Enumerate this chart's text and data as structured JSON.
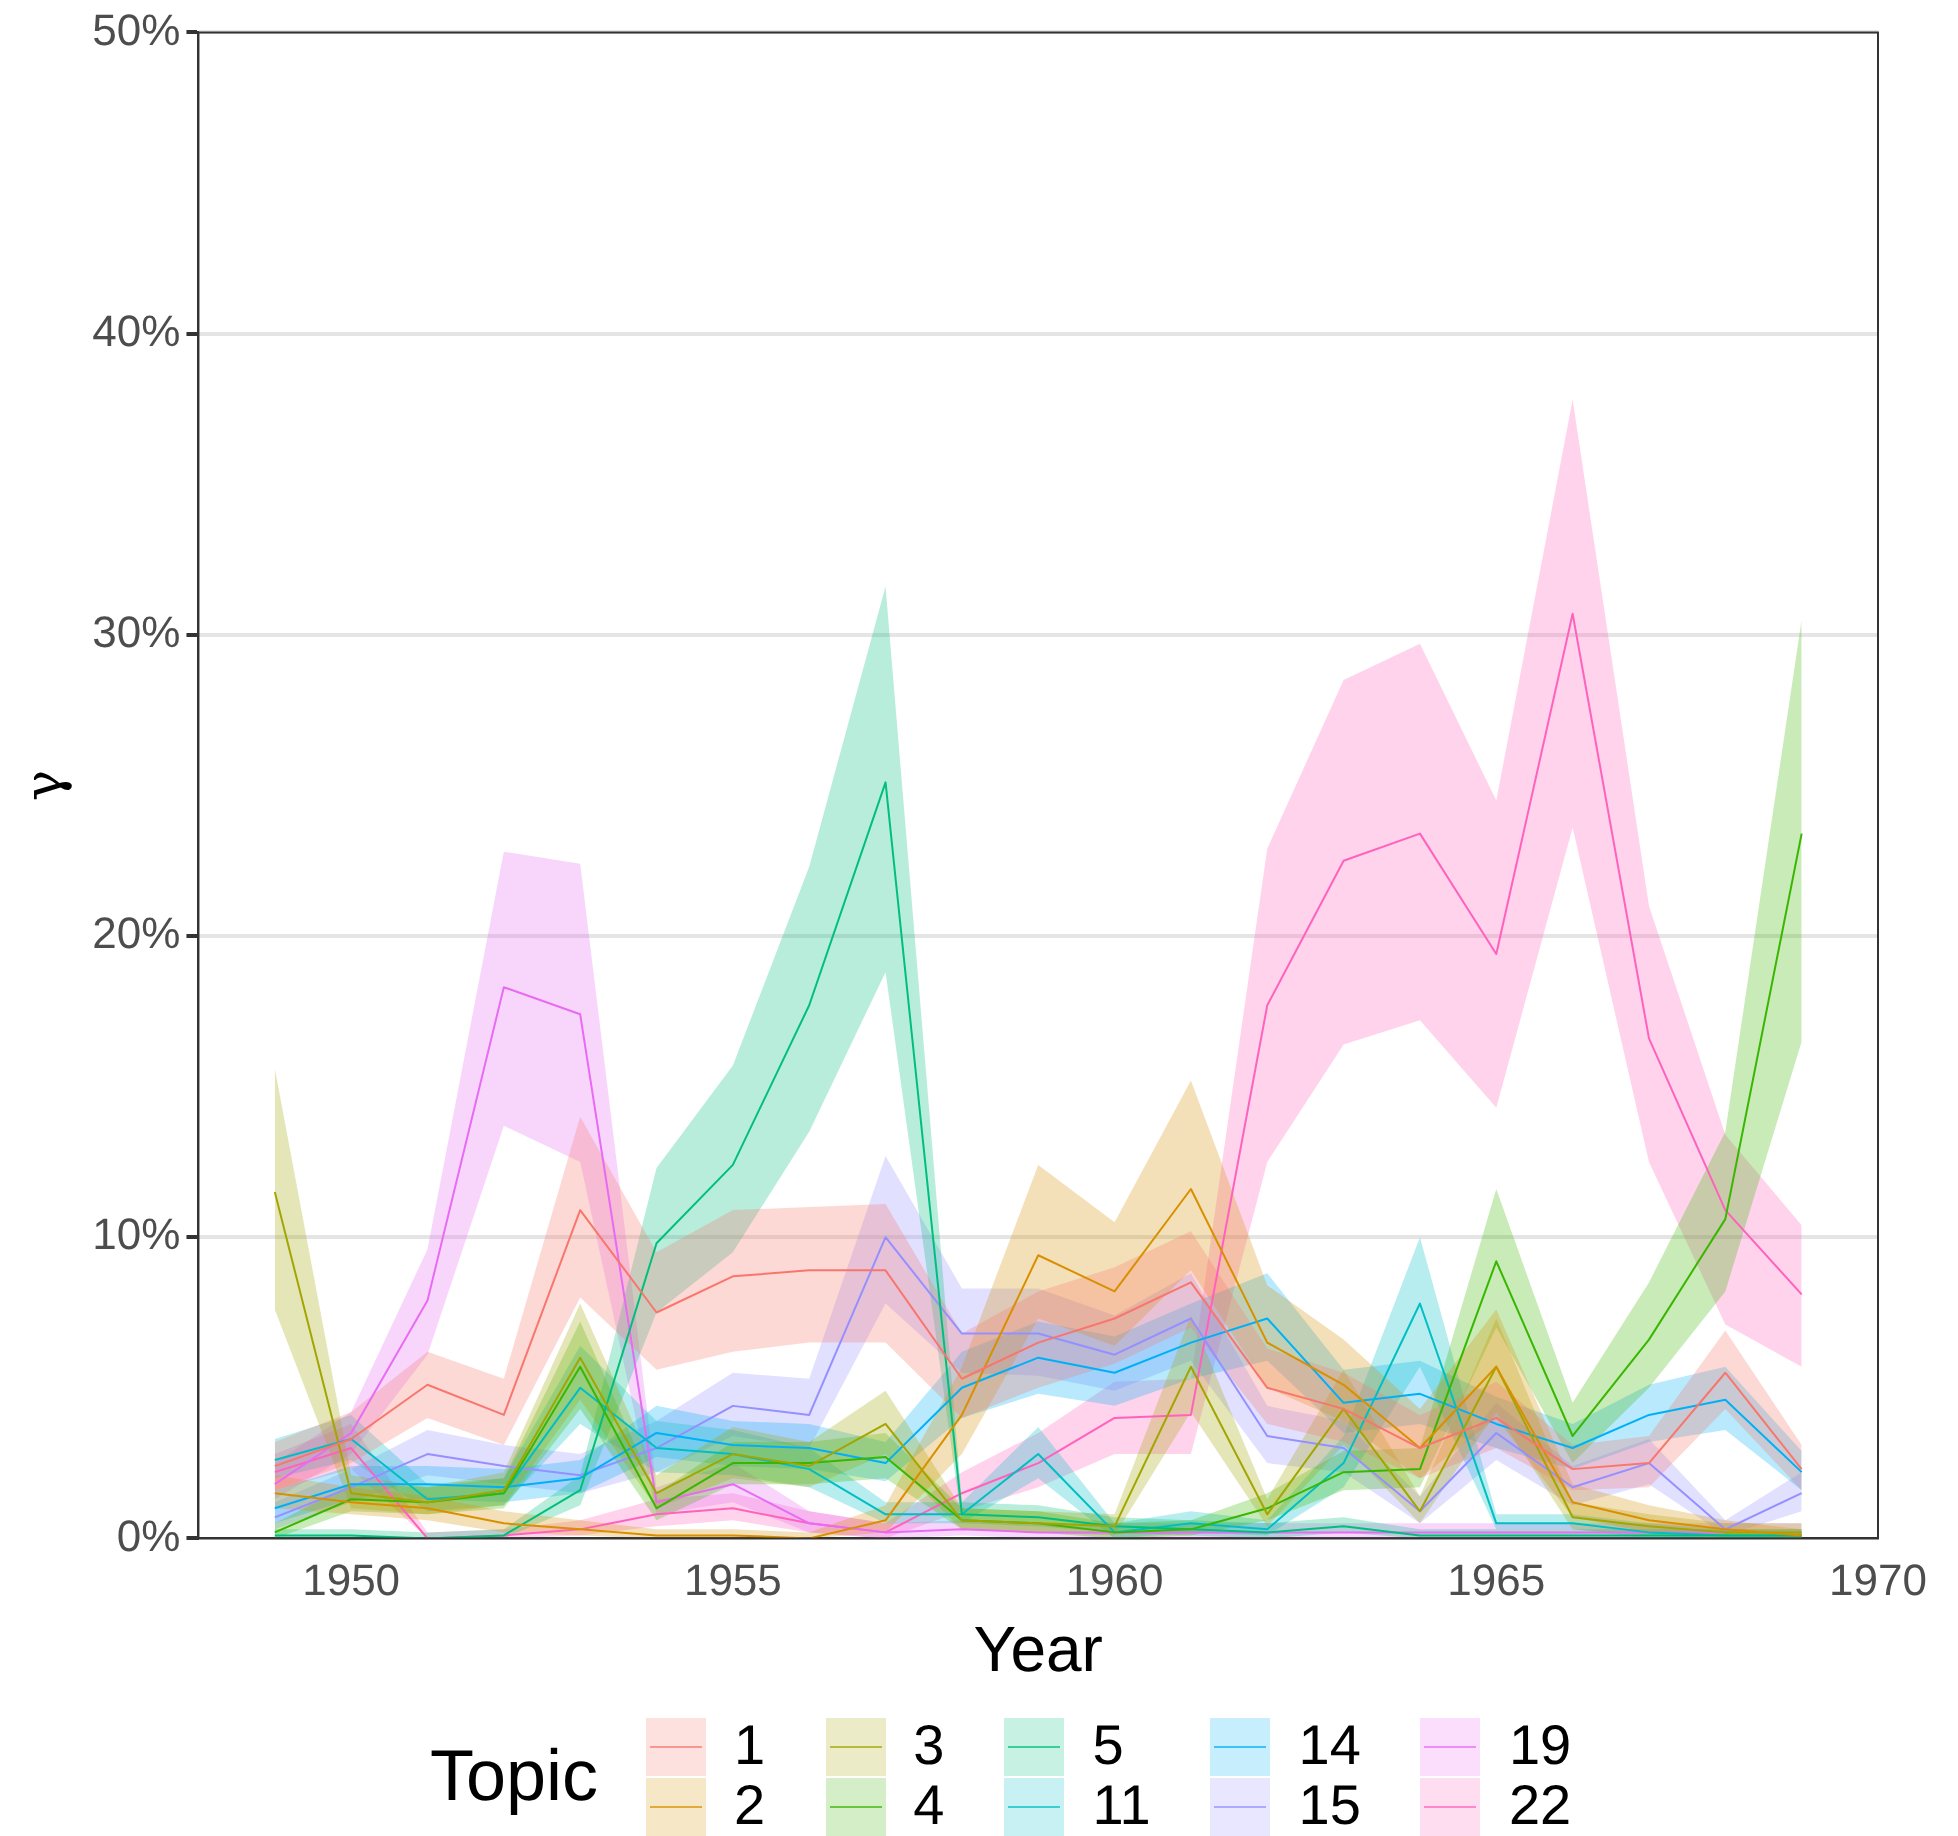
{
  "chart_data": {
    "type": "line",
    "xlabel": "Year",
    "ylabel": "γ",
    "legend_title": "Topic",
    "legend": "bottom",
    "grid": "y",
    "marker": "none",
    "line_style": "solid",
    "x": [
      1949,
      1950,
      1951,
      1952,
      1953,
      1954,
      1955,
      1956,
      1957,
      1958,
      1959,
      1960,
      1961,
      1962,
      1963,
      1964,
      1965,
      1966,
      1967,
      1968,
      1969
    ],
    "xlim": [
      1948,
      1970
    ],
    "xticks": [
      1950,
      1955,
      1960,
      1965,
      1970
    ],
    "ylim": [
      0,
      50
    ],
    "yticks": [
      {
        "value": 0,
        "label": "0%"
      },
      {
        "value": 10,
        "label": "10%"
      },
      {
        "value": 20,
        "label": "20%"
      },
      {
        "value": 30,
        "label": "30%"
      },
      {
        "value": 40,
        "label": "40%"
      },
      {
        "value": 50,
        "label": "50%"
      }
    ],
    "series": [
      {
        "name": "1",
        "color": "#f8766d",
        "values": [
          2.4,
          3.3,
          5.1,
          4.1,
          10.9,
          7.5,
          8.7,
          8.9,
          8.9,
          5.3,
          6.5,
          7.3,
          8.5,
          5.0,
          4.3,
          3.0,
          4.0,
          2.3,
          2.5,
          5.5,
          2.3
        ],
        "lower": [
          1.6,
          2.5,
          4.0,
          3.1,
          8.0,
          5.6,
          6.2,
          6.5,
          6.5,
          4.0,
          5.0,
          5.8,
          7.0,
          3.8,
          3.2,
          2.0,
          3.0,
          1.6,
          1.7,
          4.3,
          1.6
        ],
        "upper": [
          3.2,
          4.2,
          6.2,
          5.3,
          14.0,
          9.5,
          10.9,
          11.0,
          11.1,
          6.8,
          8.2,
          9.0,
          10.2,
          6.3,
          5.5,
          4.1,
          5.2,
          3.1,
          3.4,
          6.9,
          3.1
        ]
      },
      {
        "name": "2",
        "color": "#d89000",
        "values": [
          1.5,
          1.2,
          1.0,
          0.5,
          0.3,
          0.1,
          0.1,
          0.0,
          0.6,
          4.1,
          9.4,
          8.2,
          11.6,
          6.5,
          5.1,
          3.0,
          5.7,
          1.2,
          0.6,
          0.3,
          0.1
        ],
        "lower": [
          1.0,
          0.8,
          0.6,
          0.2,
          0.1,
          0.0,
          0.0,
          0.0,
          0.2,
          2.8,
          7.3,
          6.4,
          8.9,
          5.0,
          3.9,
          2.0,
          4.0,
          0.7,
          0.2,
          0.1,
          0.0
        ],
        "upper": [
          2.1,
          1.7,
          1.4,
          0.9,
          0.6,
          0.3,
          0.3,
          0.2,
          1.1,
          5.7,
          12.4,
          10.5,
          15.2,
          8.4,
          6.6,
          4.3,
          7.6,
          1.8,
          1.1,
          0.6,
          0.3
        ]
      },
      {
        "name": "3",
        "color": "#a3a500",
        "values": [
          11.5,
          1.5,
          1.2,
          1.6,
          6.0,
          1.5,
          2.8,
          2.4,
          3.8,
          0.6,
          0.5,
          0.4,
          5.7,
          0.8,
          4.3,
          0.9,
          5.7,
          0.7,
          0.4,
          0.2,
          0.2
        ],
        "lower": [
          7.6,
          1.0,
          0.8,
          1.1,
          4.6,
          1.0,
          2.0,
          1.7,
          2.8,
          0.3,
          0.2,
          0.1,
          4.2,
          0.4,
          3.1,
          0.5,
          4.2,
          0.3,
          0.1,
          0.0,
          0.0
        ],
        "upper": [
          15.6,
          2.1,
          1.7,
          2.2,
          7.8,
          2.1,
          3.7,
          3.2,
          4.9,
          1.0,
          0.9,
          0.8,
          7.4,
          1.3,
          5.6,
          1.4,
          7.3,
          1.2,
          0.8,
          0.5,
          0.5
        ]
      },
      {
        "name": "4",
        "color": "#39b600",
        "values": [
          0.2,
          1.3,
          1.2,
          1.5,
          5.7,
          1.0,
          2.5,
          2.5,
          2.7,
          0.6,
          0.5,
          0.2,
          0.3,
          1.0,
          2.2,
          2.3,
          9.2,
          3.4,
          6.6,
          10.6,
          23.4
        ],
        "lower": [
          0.0,
          0.9,
          0.8,
          1.0,
          4.3,
          0.6,
          1.8,
          1.8,
          2.0,
          0.3,
          0.2,
          0.0,
          0.1,
          0.6,
          1.6,
          1.7,
          7.0,
          2.5,
          5.0,
          8.2,
          16.5
        ],
        "upper": [
          0.5,
          1.8,
          1.7,
          2.0,
          7.2,
          1.5,
          3.2,
          3.2,
          3.5,
          1.0,
          0.9,
          0.5,
          0.6,
          1.5,
          2.9,
          3.0,
          11.6,
          4.5,
          8.5,
          13.5,
          30.5
        ]
      },
      {
        "name": "5",
        "color": "#00bf7d",
        "values": [
          0.1,
          0.1,
          0.0,
          0.1,
          1.6,
          9.8,
          12.4,
          17.7,
          25.1,
          0.8,
          0.7,
          0.4,
          0.3,
          0.2,
          0.4,
          0.1,
          0.1,
          0.1,
          0.1,
          0.1,
          0.1
        ],
        "lower": [
          0.0,
          0.0,
          0.0,
          0.0,
          1.1,
          7.5,
          9.5,
          13.5,
          18.8,
          0.5,
          0.4,
          0.2,
          0.1,
          0.0,
          0.2,
          0.0,
          0.0,
          0.0,
          0.0,
          0.0,
          0.0
        ],
        "upper": [
          0.3,
          0.3,
          0.2,
          0.3,
          2.1,
          12.3,
          15.7,
          22.3,
          31.6,
          1.2,
          1.1,
          0.7,
          0.6,
          0.5,
          0.7,
          0.3,
          0.3,
          0.3,
          0.3,
          0.3,
          0.3
        ]
      },
      {
        "name": "11",
        "color": "#00bfc4",
        "values": [
          2.6,
          3.3,
          1.3,
          1.5,
          5.0,
          3.0,
          2.8,
          2.3,
          0.8,
          0.8,
          2.8,
          0.2,
          0.5,
          0.3,
          2.5,
          7.8,
          0.5,
          0.5,
          0.2,
          0.1,
          0.1
        ],
        "lower": [
          2.0,
          2.6,
          0.9,
          1.1,
          3.8,
          2.2,
          2.1,
          1.7,
          0.5,
          0.5,
          2.0,
          0.0,
          0.2,
          0.1,
          1.7,
          5.7,
          0.3,
          0.3,
          0.0,
          0.0,
          0.0
        ],
        "upper": [
          3.3,
          4.1,
          1.8,
          2.0,
          6.4,
          3.9,
          3.6,
          3.0,
          1.2,
          1.2,
          3.7,
          0.5,
          0.9,
          0.6,
          3.4,
          10.0,
          0.8,
          0.8,
          0.5,
          0.3,
          0.3
        ]
      },
      {
        "name": "14",
        "color": "#00b0f6",
        "values": [
          1.0,
          1.8,
          1.8,
          1.7,
          2.0,
          3.5,
          3.1,
          3.0,
          2.5,
          5.0,
          6.0,
          5.5,
          6.5,
          7.3,
          4.5,
          4.8,
          3.8,
          3.0,
          4.1,
          4.6,
          2.2
        ],
        "lower": [
          0.5,
          1.3,
          1.3,
          1.2,
          1.5,
          2.7,
          2.4,
          2.3,
          1.9,
          4.0,
          4.8,
          4.4,
          5.3,
          5.9,
          3.5,
          3.8,
          3.0,
          2.3,
          3.2,
          3.6,
          1.6
        ],
        "upper": [
          1.6,
          2.4,
          2.4,
          2.3,
          2.6,
          4.4,
          3.9,
          3.8,
          3.2,
          6.2,
          7.2,
          6.7,
          7.8,
          8.8,
          5.6,
          5.9,
          4.7,
          3.8,
          5.1,
          5.7,
          2.9
        ]
      },
      {
        "name": "15",
        "color": "#9590ff",
        "values": [
          0.7,
          1.7,
          2.8,
          2.4,
          2.1,
          3.0,
          4.4,
          4.1,
          10.0,
          6.8,
          6.8,
          6.1,
          7.3,
          3.4,
          3.0,
          0.9,
          3.5,
          1.7,
          2.5,
          0.3,
          1.5
        ],
        "lower": [
          0.3,
          1.2,
          2.1,
          1.8,
          1.5,
          2.2,
          3.4,
          3.0,
          7.8,
          5.5,
          5.4,
          4.9,
          5.9,
          2.5,
          2.2,
          0.5,
          2.6,
          1.1,
          1.8,
          0.1,
          0.9
        ],
        "upper": [
          1.2,
          2.3,
          3.6,
          3.1,
          2.8,
          3.9,
          5.5,
          5.3,
          12.7,
          8.3,
          8.3,
          7.4,
          8.8,
          4.4,
          3.9,
          1.4,
          4.5,
          2.4,
          3.3,
          0.6,
          2.2
        ]
      },
      {
        "name": "19",
        "color": "#e76bf3",
        "values": [
          1.8,
          3.5,
          7.9,
          18.3,
          17.4,
          1.2,
          1.8,
          0.5,
          0.2,
          0.3,
          0.2,
          0.2,
          0.2,
          0.2,
          0.2,
          0.2,
          0.2,
          0.2,
          0.2,
          0.2,
          null
        ],
        "lower": [
          1.3,
          2.8,
          6.1,
          13.7,
          12.5,
          0.8,
          1.2,
          0.2,
          0.0,
          0.1,
          0.0,
          0.0,
          0.0,
          0.0,
          0.0,
          0.0,
          0.0,
          0.0,
          0.0,
          0.0,
          0.0
        ],
        "upper": [
          2.5,
          4.2,
          9.6,
          22.8,
          22.4,
          1.7,
          2.5,
          0.9,
          0.5,
          0.6,
          0.5,
          0.5,
          0.5,
          0.5,
          0.5,
          0.5,
          0.5,
          0.5,
          0.5,
          0.5,
          0.5
        ]
      },
      {
        "name": "22",
        "color": "#ff62bc",
        "values": [
          2.2,
          3.0,
          0.0,
          0.1,
          0.3,
          0.8,
          1.0,
          0.5,
          0.2,
          1.5,
          2.5,
          4.0,
          4.1,
          17.7,
          22.5,
          23.4,
          19.4,
          30.7,
          16.6,
          10.9,
          8.1
        ],
        "lower": [
          1.6,
          2.3,
          0.0,
          0.0,
          0.1,
          0.4,
          0.6,
          0.2,
          0.0,
          0.9,
          1.7,
          2.8,
          2.8,
          12.5,
          16.4,
          17.2,
          14.3,
          23.6,
          12.5,
          7.1,
          5.7
        ],
        "upper": [
          2.8,
          3.8,
          0.2,
          0.3,
          0.6,
          1.3,
          1.5,
          0.9,
          0.5,
          2.2,
          3.5,
          5.2,
          5.3,
          22.9,
          28.5,
          29.7,
          24.5,
          37.8,
          21.0,
          13.4,
          10.4
        ]
      }
    ]
  }
}
